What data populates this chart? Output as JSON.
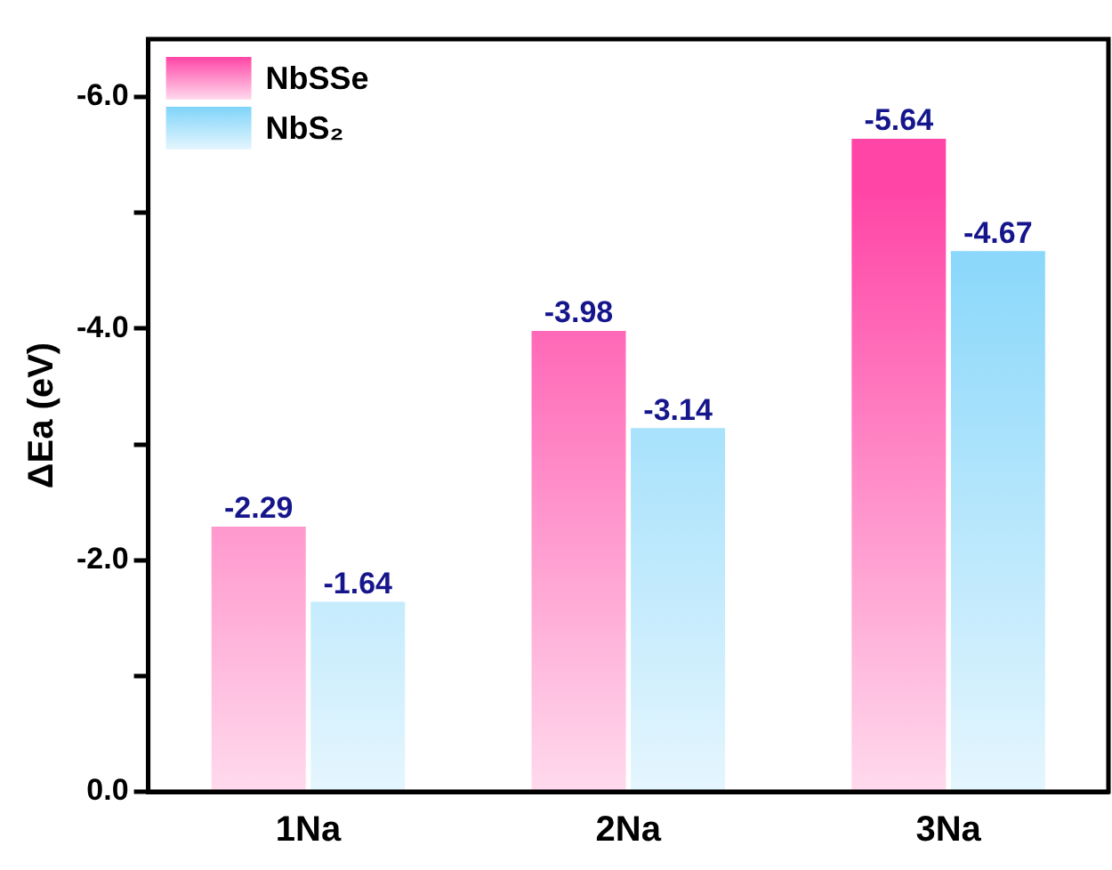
{
  "chart_data": {
    "type": "bar",
    "ylabel": "ΔEa (eV)",
    "categories": [
      "1Na",
      "2Na",
      "3Na"
    ],
    "series": [
      {
        "name": "NbSSe",
        "color": "#ff45a6",
        "values": [
          -2.29,
          -3.98,
          -5.64
        ]
      },
      {
        "name": "NbS₂",
        "color": "#7fd4fa",
        "values": [
          -1.64,
          -3.14,
          -4.67
        ]
      }
    ],
    "ylim": [
      0,
      -6.5
    ],
    "yticks": [
      {
        "value": 0,
        "label": "0.0"
      },
      {
        "value": -1,
        "label": null
      },
      {
        "value": -2,
        "label": "-2.0"
      },
      {
        "value": -3,
        "label": null
      },
      {
        "value": -4,
        "label": "-4.0"
      },
      {
        "value": -5,
        "label": null
      },
      {
        "value": -6,
        "label": "-6.0"
      }
    ],
    "data_labels": true,
    "grid": false,
    "legend": "top left"
  }
}
